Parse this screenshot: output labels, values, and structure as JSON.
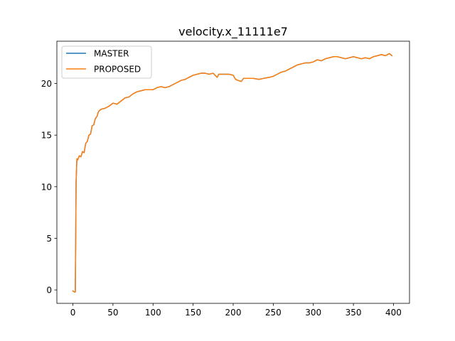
{
  "chart_data": {
    "type": "line",
    "title": "velocity.x_11111e7",
    "xlabel": "",
    "ylabel": "",
    "xlim": [
      -20,
      420
    ],
    "ylim": [
      -1.3,
      24.1
    ],
    "x_ticks": [
      0,
      50,
      100,
      150,
      200,
      250,
      300,
      350,
      400
    ],
    "y_ticks": [
      0,
      5,
      10,
      15,
      20
    ],
    "grid": false,
    "legend_position": "top-left",
    "series": [
      {
        "name": "MASTER",
        "color": "#1f77b4",
        "x": [
          0,
          2,
          3,
          4,
          5,
          6,
          8,
          10,
          12,
          14,
          16,
          18,
          20,
          22,
          24,
          26,
          28,
          30,
          32,
          35,
          40,
          45,
          50,
          55,
          60,
          65,
          70,
          75,
          80,
          85,
          90,
          95,
          100,
          105,
          110,
          115,
          120,
          125,
          130,
          135,
          140,
          145,
          150,
          155,
          160,
          165,
          170,
          175,
          180,
          182,
          185,
          190,
          195,
          200,
          203,
          206,
          210,
          213,
          218,
          225,
          232,
          238,
          245,
          250,
          255,
          260,
          265,
          270,
          275,
          280,
          285,
          290,
          295,
          300,
          305,
          310,
          315,
          320,
          325,
          330,
          335,
          340,
          345,
          350,
          355,
          360,
          365,
          370,
          375,
          380,
          385,
          390,
          395,
          398
        ],
        "values": [
          -0.1,
          -0.2,
          -0.2,
          10.5,
          12.7,
          12.6,
          13.0,
          12.9,
          13.4,
          13.3,
          14.2,
          14.4,
          15.0,
          15.1,
          15.9,
          16.0,
          16.6,
          16.8,
          17.3,
          17.5,
          17.6,
          17.8,
          18.1,
          18.0,
          18.3,
          18.6,
          18.7,
          19.0,
          19.2,
          19.3,
          19.4,
          19.4,
          19.4,
          19.6,
          19.7,
          19.6,
          19.7,
          19.9,
          20.1,
          20.3,
          20.4,
          20.6,
          20.8,
          20.9,
          21.0,
          21.0,
          20.9,
          21.0,
          20.6,
          20.9,
          20.9,
          20.9,
          20.9,
          20.8,
          20.4,
          20.3,
          20.2,
          20.5,
          20.5,
          20.5,
          20.4,
          20.5,
          20.6,
          20.7,
          20.9,
          21.1,
          21.2,
          21.4,
          21.6,
          21.8,
          21.9,
          22.0,
          22.0,
          22.1,
          22.3,
          22.2,
          22.4,
          22.5,
          22.6,
          22.6,
          22.5,
          22.4,
          22.5,
          22.6,
          22.5,
          22.4,
          22.5,
          22.4,
          22.6,
          22.7,
          22.8,
          22.7,
          22.9,
          22.7
        ]
      },
      {
        "name": "PROPOSED",
        "color": "#ff7f0e",
        "x": [
          0,
          2,
          3,
          4,
          5,
          6,
          8,
          10,
          12,
          14,
          16,
          18,
          20,
          22,
          24,
          26,
          28,
          30,
          32,
          35,
          40,
          45,
          50,
          55,
          60,
          65,
          70,
          75,
          80,
          85,
          90,
          95,
          100,
          105,
          110,
          115,
          120,
          125,
          130,
          135,
          140,
          145,
          150,
          155,
          160,
          165,
          170,
          175,
          180,
          182,
          185,
          190,
          195,
          200,
          203,
          206,
          210,
          213,
          218,
          225,
          232,
          238,
          245,
          250,
          255,
          260,
          265,
          270,
          275,
          280,
          285,
          290,
          295,
          300,
          305,
          310,
          315,
          320,
          325,
          330,
          335,
          340,
          345,
          350,
          355,
          360,
          365,
          370,
          375,
          380,
          385,
          390,
          395,
          398
        ],
        "values": [
          -0.1,
          -0.2,
          -0.2,
          10.5,
          12.7,
          12.6,
          13.0,
          12.9,
          13.4,
          13.3,
          14.2,
          14.4,
          15.0,
          15.1,
          15.9,
          16.0,
          16.6,
          16.8,
          17.3,
          17.5,
          17.6,
          17.8,
          18.1,
          18.0,
          18.3,
          18.6,
          18.7,
          19.0,
          19.2,
          19.3,
          19.4,
          19.4,
          19.4,
          19.6,
          19.7,
          19.6,
          19.7,
          19.9,
          20.1,
          20.3,
          20.4,
          20.6,
          20.8,
          20.9,
          21.0,
          21.0,
          20.9,
          21.0,
          20.6,
          20.9,
          20.9,
          20.9,
          20.9,
          20.8,
          20.4,
          20.3,
          20.2,
          20.5,
          20.5,
          20.5,
          20.4,
          20.5,
          20.6,
          20.7,
          20.9,
          21.1,
          21.2,
          21.4,
          21.6,
          21.8,
          21.9,
          22.0,
          22.0,
          22.1,
          22.3,
          22.2,
          22.4,
          22.5,
          22.6,
          22.6,
          22.5,
          22.4,
          22.5,
          22.6,
          22.5,
          22.4,
          22.5,
          22.4,
          22.6,
          22.7,
          22.8,
          22.7,
          22.9,
          22.7
        ]
      }
    ]
  }
}
